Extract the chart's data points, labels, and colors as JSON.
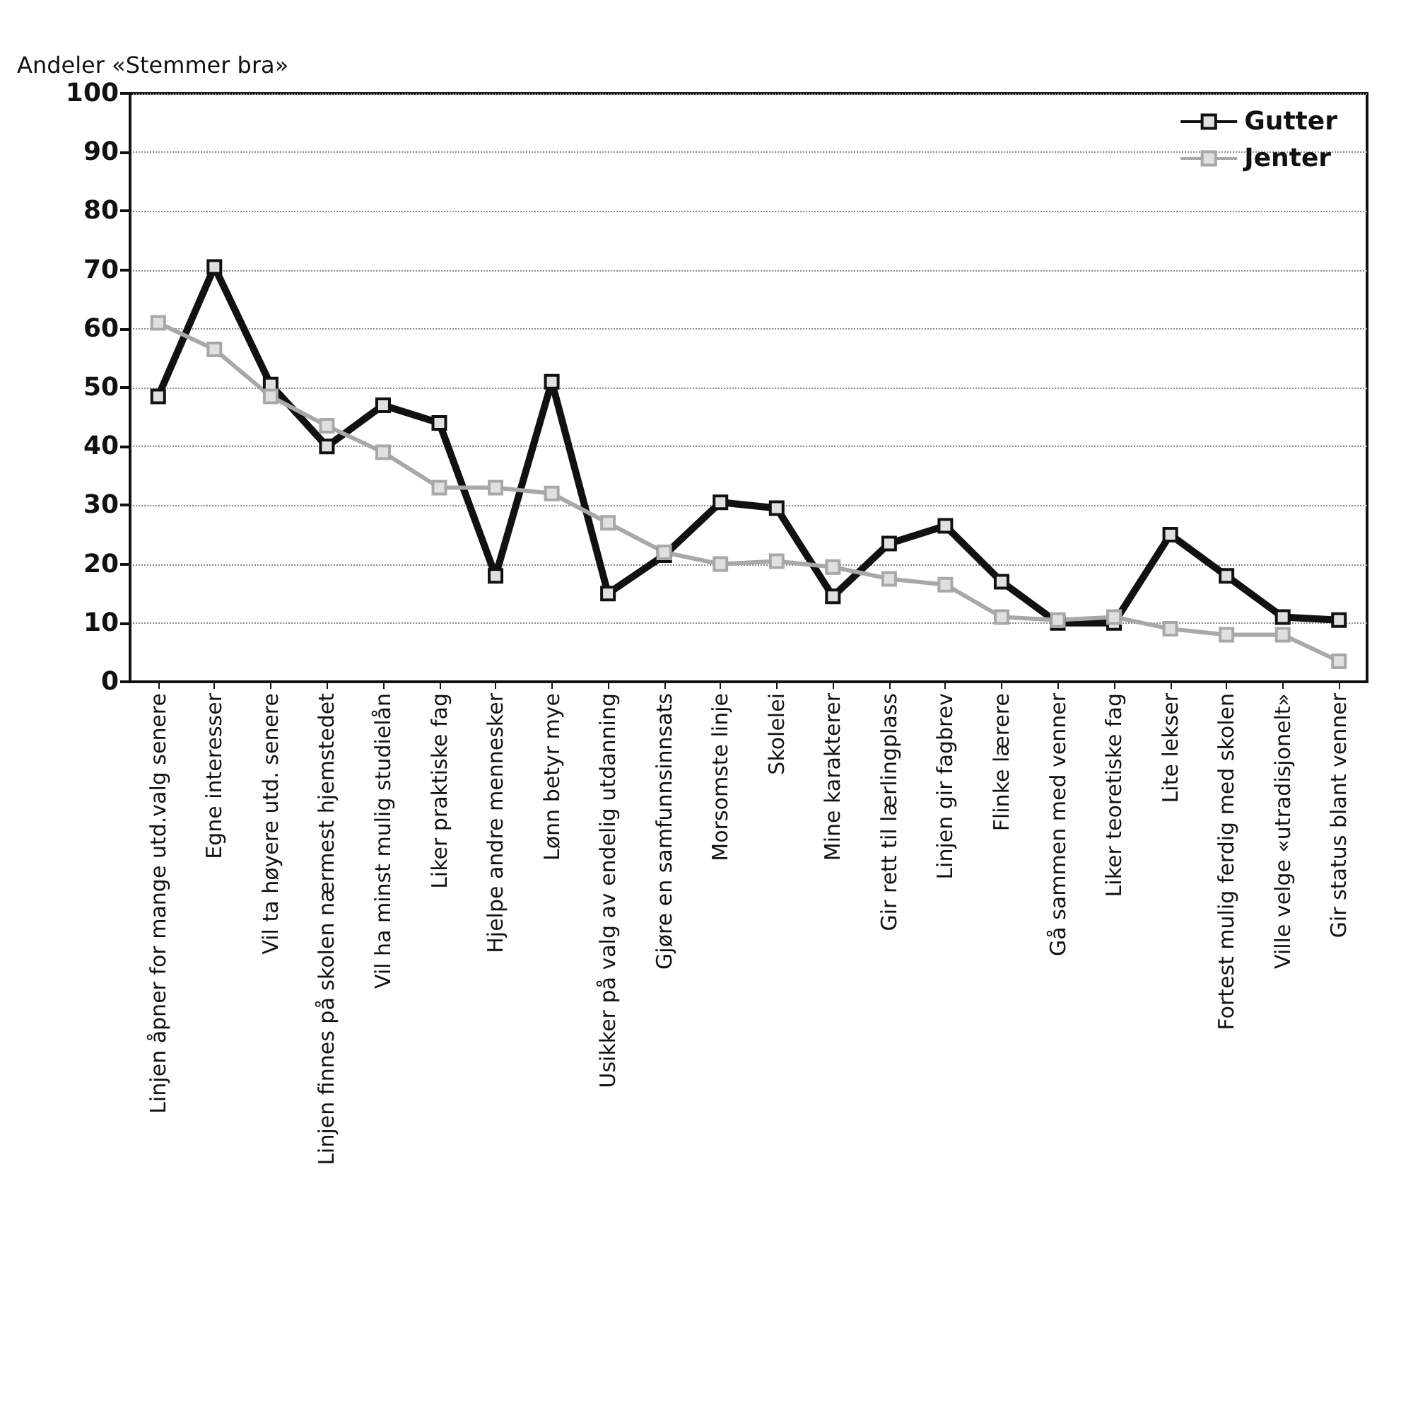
{
  "chart_data": {
    "type": "line",
    "ylabel": "Andeler «Stemmer bra»",
    "categories": [
      "Linjen åpner for mange utd.valg senere",
      "Egne interesser",
      "Vil ta høyere utd. senere",
      "Linjen finnes på skolen nærmest hjemstedet",
      "Vil ha minst mulig studielån",
      "Liker praktiske fag",
      "Hjelpe andre mennesker",
      "Lønn betyr mye",
      "Usikker på valg av endelig utdanning",
      "Gjøre en samfunnsinnsats",
      "Morsomste linje",
      "Skolelei",
      "Mine karakterer",
      "Gir rett til lærlingplass",
      "Linjen gir fagbrev",
      "Flinke lærere",
      "Gå sammen med venner",
      "Liker teoretiske fag",
      "Lite lekser",
      "Fortest mulig ferdig med skolen",
      "Ville velge «utradisjonelt»",
      "Gir status blant venner"
    ],
    "series": [
      {
        "name": "Gutter",
        "color": "#111111",
        "values": [
          48.5,
          70.5,
          50.5,
          40,
          47,
          44,
          18,
          51,
          15,
          21.5,
          30.5,
          29.5,
          14.5,
          23.5,
          26.5,
          17,
          10,
          10,
          25,
          18,
          11,
          10.5
        ]
      },
      {
        "name": "Jenter",
        "color": "#a8a8a8",
        "values": [
          61,
          56.5,
          48.5,
          43.5,
          39,
          33,
          33,
          32,
          27,
          22,
          20,
          20.5,
          19.5,
          17.5,
          16.5,
          11,
          10.5,
          11,
          9,
          8,
          8,
          3.5
        ]
      }
    ],
    "ylim": [
      0,
      100
    ],
    "yticks": [
      0,
      10,
      20,
      30,
      40,
      50,
      60,
      70,
      80,
      90,
      100
    ],
    "grid": "y",
    "legend": "top right",
    "marker": "square"
  }
}
